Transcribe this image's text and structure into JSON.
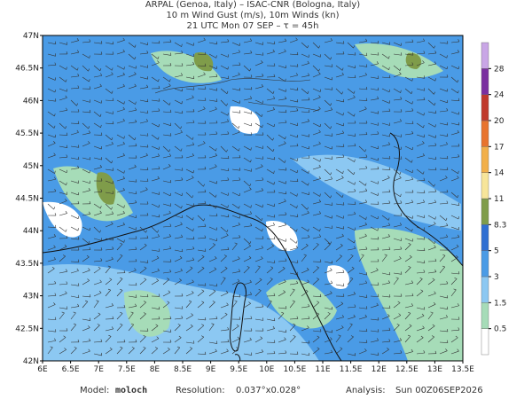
{
  "header": {
    "lines": [
      "ARPAL (Genoa, Italy)  –  ISAC-CNR (Bologna, Italy)",
      "10 m Wind Gust (m/s), 10m Winds (kn)",
      "21 UTC Mon 07 SEP  –  τ = 45h"
    ]
  },
  "map": {
    "x_ticks": [
      "6E",
      "6.5E",
      "7E",
      "7.5E",
      "8E",
      "8.5E",
      "9E",
      "9.5E",
      "10E",
      "10.5E",
      "11E",
      "11.5E",
      "12E",
      "12.5E",
      "13E",
      "13.5E"
    ],
    "y_ticks": [
      "47N",
      "46.5N",
      "46N",
      "45.5N",
      "45N",
      "44.5N",
      "44N",
      "43.5N",
      "43N",
      "42.5N",
      "42N"
    ]
  },
  "colorbar": {
    "levels": [
      0.5,
      1.5,
      3,
      5,
      8.3,
      11,
      14,
      17,
      20,
      24,
      28
    ],
    "colors": [
      "#ffffff",
      "#a6dcb8",
      "#8cc8f2",
      "#4a9be6",
      "#2f6fd2",
      "#7f9c4a",
      "#f7e59a",
      "#f2b04a",
      "#e8742e",
      "#c0392b",
      "#7a2fa0",
      "#c9a6e6"
    ]
  },
  "footer": {
    "model_label": "Model:",
    "model": "moloch",
    "resolution_label": "Resolution:",
    "resolution": "0.037°x0.028°",
    "analysis_label": "Analysis:",
    "analysis": "Sun 00Z06SEP2026"
  }
}
